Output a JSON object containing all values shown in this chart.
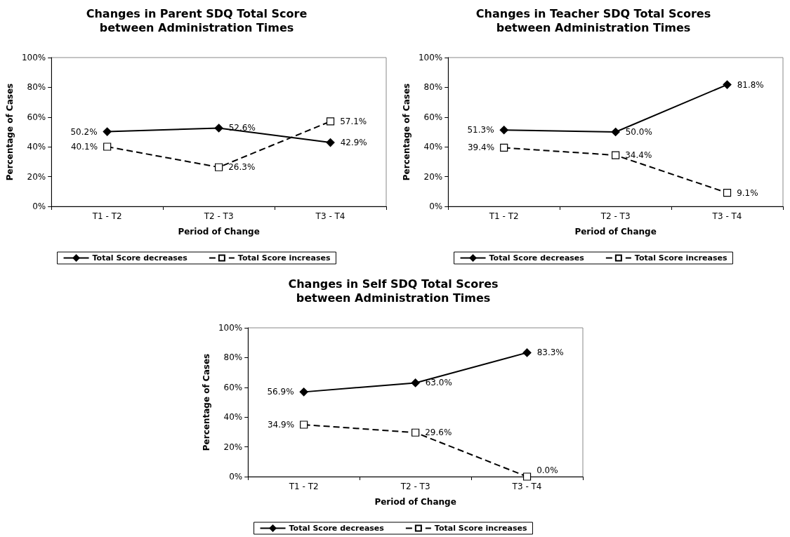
{
  "chart_data": [
    {
      "type": "line",
      "title": "Changes in Parent SDQ Total Score\nbetween Administration Times",
      "xlabel": "Period of Change",
      "ylabel": "Percentage of Cases",
      "categories": [
        "T1 - T2",
        "T2 - T3",
        "T3 - T4"
      ],
      "ylim": [
        0,
        100
      ],
      "yticks": [
        {
          "value": 0,
          "label": "0%"
        },
        {
          "value": 20,
          "label": "20%"
        },
        {
          "value": 40,
          "label": "40%"
        },
        {
          "value": 60,
          "label": "60%"
        },
        {
          "value": 80,
          "label": "80%"
        },
        {
          "value": 100,
          "label": "100%"
        }
      ],
      "grid": false,
      "legend": "bottom",
      "series": [
        {
          "name": "Total Score decreases",
          "color": "#000000",
          "marker": "diamond",
          "line_style": "solid",
          "values": [
            50.2,
            52.6,
            42.9
          ],
          "value_labels": [
            "50.2%",
            "52.6%",
            "42.9%"
          ]
        },
        {
          "name": "Total Score increases",
          "color": "#000000",
          "marker": "square",
          "line_style": "dashed",
          "values": [
            40.1,
            26.3,
            57.1
          ],
          "value_labels": [
            "40.1%",
            "26.3%",
            "57.1%"
          ]
        }
      ]
    },
    {
      "type": "line",
      "title": "Changes in Teacher SDQ Total Scores\nbetween Administration Times",
      "xlabel": "Period of Change",
      "ylabel": "Percentage of Cases",
      "categories": [
        "T1 - T2",
        "T2 - T3",
        "T3 - T4"
      ],
      "ylim": [
        0,
        100
      ],
      "yticks": [
        {
          "value": 0,
          "label": "0%"
        },
        {
          "value": 20,
          "label": "20%"
        },
        {
          "value": 40,
          "label": "40%"
        },
        {
          "value": 60,
          "label": "60%"
        },
        {
          "value": 80,
          "label": "80%"
        },
        {
          "value": 100,
          "label": "100%"
        }
      ],
      "grid": false,
      "legend": "bottom",
      "series": [
        {
          "name": "Total Score decreases",
          "color": "#000000",
          "marker": "diamond",
          "line_style": "solid",
          "values": [
            51.3,
            50.0,
            81.8
          ],
          "value_labels": [
            "51.3%",
            "50.0%",
            "81.8%"
          ]
        },
        {
          "name": "Total Score increases",
          "color": "#000000",
          "marker": "square",
          "line_style": "dashed",
          "values": [
            39.4,
            34.4,
            9.1
          ],
          "value_labels": [
            "39.4%",
            "34.4%",
            "9.1%"
          ]
        }
      ]
    },
    {
      "type": "line",
      "title": "Changes in Self SDQ Total Scores\nbetween Administration Times",
      "xlabel": "Period of Change",
      "ylabel": "Percentage of Cases",
      "categories": [
        "T1 - T2",
        "T2 - T3",
        "T3 - T4"
      ],
      "ylim": [
        0,
        100
      ],
      "yticks": [
        {
          "value": 0,
          "label": "0%"
        },
        {
          "value": 20,
          "label": "20%"
        },
        {
          "value": 40,
          "label": "40%"
        },
        {
          "value": 60,
          "label": "60%"
        },
        {
          "value": 80,
          "label": "80%"
        },
        {
          "value": 100,
          "label": "100%"
        }
      ],
      "grid": false,
      "legend": "bottom",
      "series": [
        {
          "name": "Total Score decreases",
          "color": "#000000",
          "marker": "diamond",
          "line_style": "solid",
          "values": [
            56.9,
            63.0,
            83.3
          ],
          "value_labels": [
            "56.9%",
            "63.0%",
            "83.3%"
          ]
        },
        {
          "name": "Total Score increases",
          "color": "#000000",
          "marker": "square",
          "line_style": "dashed",
          "values": [
            34.9,
            29.6,
            0.0
          ],
          "value_labels": [
            "34.9%",
            "29.6%",
            "0.0%"
          ]
        }
      ]
    }
  ]
}
